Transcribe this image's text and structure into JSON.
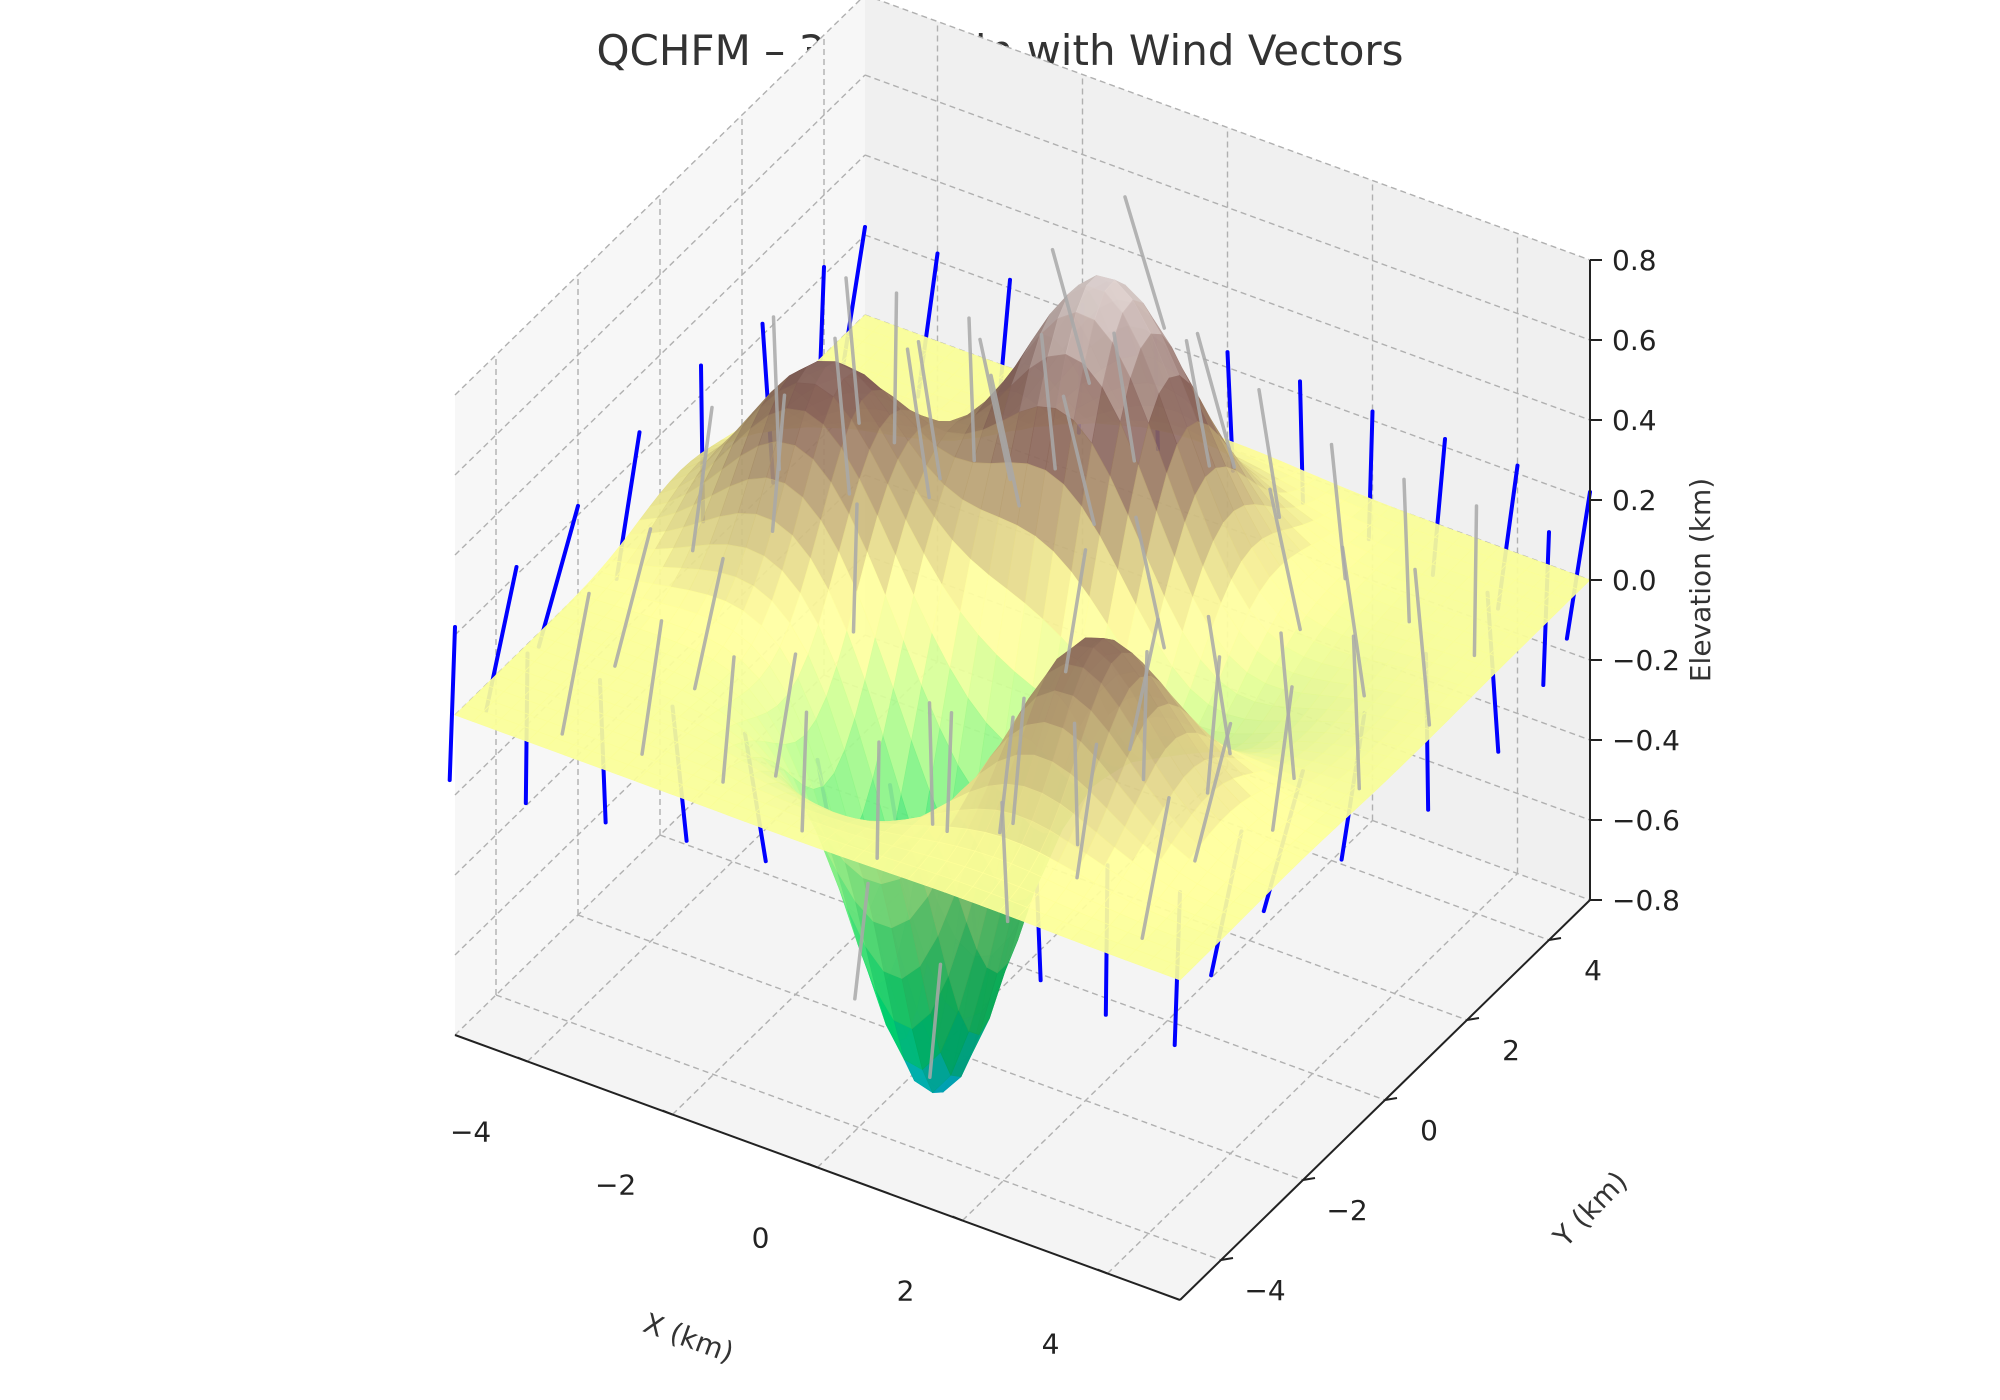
{
  "chart_data": {
    "type": "surface3d",
    "title": "QCHFM – 3D Terrain with Wind Vectors",
    "xlabel": "X (km)",
    "ylabel": "Y (km)",
    "zlabel": "Elevation (km)",
    "xlim": [
      -5,
      5
    ],
    "ylim": [
      -5,
      5
    ],
    "zlim": [
      -0.8,
      0.8
    ],
    "x_ticks": [
      -4,
      -2,
      0,
      2,
      4
    ],
    "y_ticks": [
      -4,
      -2,
      0,
      2,
      4
    ],
    "z_ticks": [
      -0.8,
      -0.6,
      -0.4,
      -0.2,
      0.0,
      0.2,
      0.4,
      0.6,
      0.8
    ],
    "x_tick_labels": [
      "−4",
      "−2",
      "0",
      "2",
      "4"
    ],
    "y_tick_labels": [
      "−4",
      "−2",
      "0",
      "2",
      "4"
    ],
    "z_tick_labels": [
      "−0.8",
      "−0.6",
      "−0.4",
      "−0.2",
      "0.0",
      "0.2",
      "0.4",
      "0.6",
      "0.8"
    ],
    "surface": {
      "colormap": "terrain",
      "peaks": [
        {
          "x": 0.0,
          "y": 2.0,
          "height": 0.82,
          "sigma": 1.1
        },
        {
          "x": -3.0,
          "y": 0.5,
          "height": 0.45,
          "sigma": 1.0
        },
        {
          "x": 2.0,
          "y": -2.0,
          "height": 0.45,
          "sigma": 1.0
        },
        {
          "x": -0.3,
          "y": -1.6,
          "height": -0.95,
          "sigma": 0.95
        },
        {
          "x": 1.0,
          "y": 0.5,
          "height": -0.3,
          "sigma": 1.4
        }
      ],
      "base": 0.0
    },
    "wind_vectors": {
      "grid_x": [
        -5,
        -4,
        -3,
        -2,
        -1,
        0,
        1,
        2,
        3,
        4,
        5
      ],
      "grid_y": [
        -5,
        -3.5,
        -2,
        -0.5,
        1,
        2.5,
        4,
        5
      ],
      "color_below": "#0000ff",
      "color_above": "#a9a9a9"
    },
    "grid": true,
    "pane_color": "#f2f2f2",
    "grid_color": "#b0b0b0"
  }
}
